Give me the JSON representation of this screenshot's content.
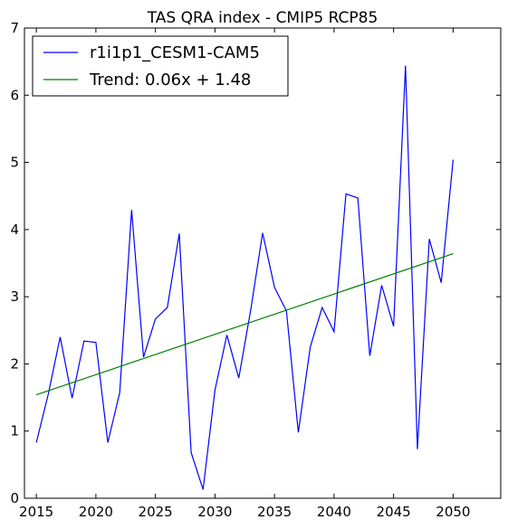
{
  "chart_data": {
    "type": "line",
    "title": "TAS QRA index - CMIP5 RCP85",
    "xlabel": "",
    "ylabel": "",
    "xlim": [
      2014,
      2054
    ],
    "ylim": [
      0,
      7
    ],
    "xticks": [
      2015,
      2020,
      2025,
      2030,
      2035,
      2040,
      2045,
      2050
    ],
    "yticks": [
      0,
      1,
      2,
      3,
      4,
      5,
      6,
      7
    ],
    "grid": false,
    "legend_position": "top-left",
    "x": [
      2015,
      2016,
      2017,
      2018,
      2019,
      2020,
      2021,
      2022,
      2023,
      2024,
      2025,
      2026,
      2027,
      2028,
      2029,
      2030,
      2031,
      2032,
      2033,
      2034,
      2035,
      2036,
      2037,
      2038,
      2039,
      2040,
      2041,
      2042,
      2043,
      2044,
      2045,
      2046,
      2047,
      2048,
      2049,
      2050
    ],
    "series": [
      {
        "name": "r1i1p1_CESM1-CAM5",
        "color": "#0000ff",
        "values": [
          0.83,
          1.55,
          2.4,
          1.49,
          2.34,
          2.32,
          0.83,
          1.57,
          4.29,
          2.1,
          2.67,
          2.84,
          3.94,
          0.68,
          0.13,
          1.61,
          2.43,
          1.79,
          2.8,
          3.95,
          3.14,
          2.79,
          0.98,
          2.25,
          2.84,
          2.48,
          4.53,
          4.47,
          2.12,
          3.17,
          2.56,
          6.44,
          0.73,
          3.86,
          3.21,
          5.04
        ]
      },
      {
        "name": "Trend: 0.06x + 1.48",
        "color": "#008000",
        "values": [
          1.54,
          3.64
        ],
        "x": [
          2015,
          2050
        ]
      }
    ]
  }
}
